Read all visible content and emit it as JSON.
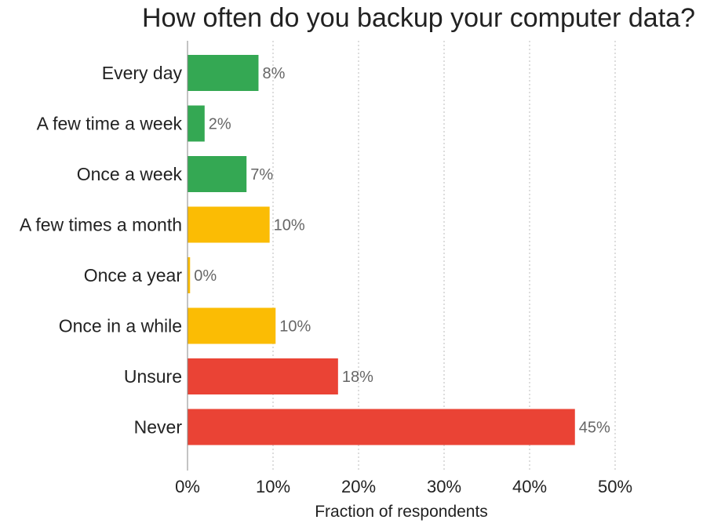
{
  "chart_data": {
    "type": "bar",
    "orientation": "horizontal",
    "title": "How often do you backup your computer data?",
    "xlabel": "Fraction of respondents",
    "ylabel": "",
    "xlim": [
      0,
      50
    ],
    "x_ticks": [
      "0%",
      "10%",
      "20%",
      "30%",
      "40%",
      "50%"
    ],
    "grid": "vertical dotted",
    "categories": [
      "Every day",
      "A few time a week",
      "Once a week",
      "A few times a month",
      "Once a year",
      "Once in a while",
      "Unsure",
      "Never"
    ],
    "values": [
      8.3,
      2.0,
      6.9,
      9.6,
      0.3,
      10.3,
      17.6,
      45.3
    ],
    "value_labels": [
      "8%",
      "2%",
      "7%",
      "10%",
      "0%",
      "10%",
      "18%",
      "45%"
    ],
    "bar_colors": [
      "#34a853",
      "#34a853",
      "#34a853",
      "#fbbc04",
      "#fbbc04",
      "#fbbc04",
      "#ea4335",
      "#ea4335"
    ]
  }
}
